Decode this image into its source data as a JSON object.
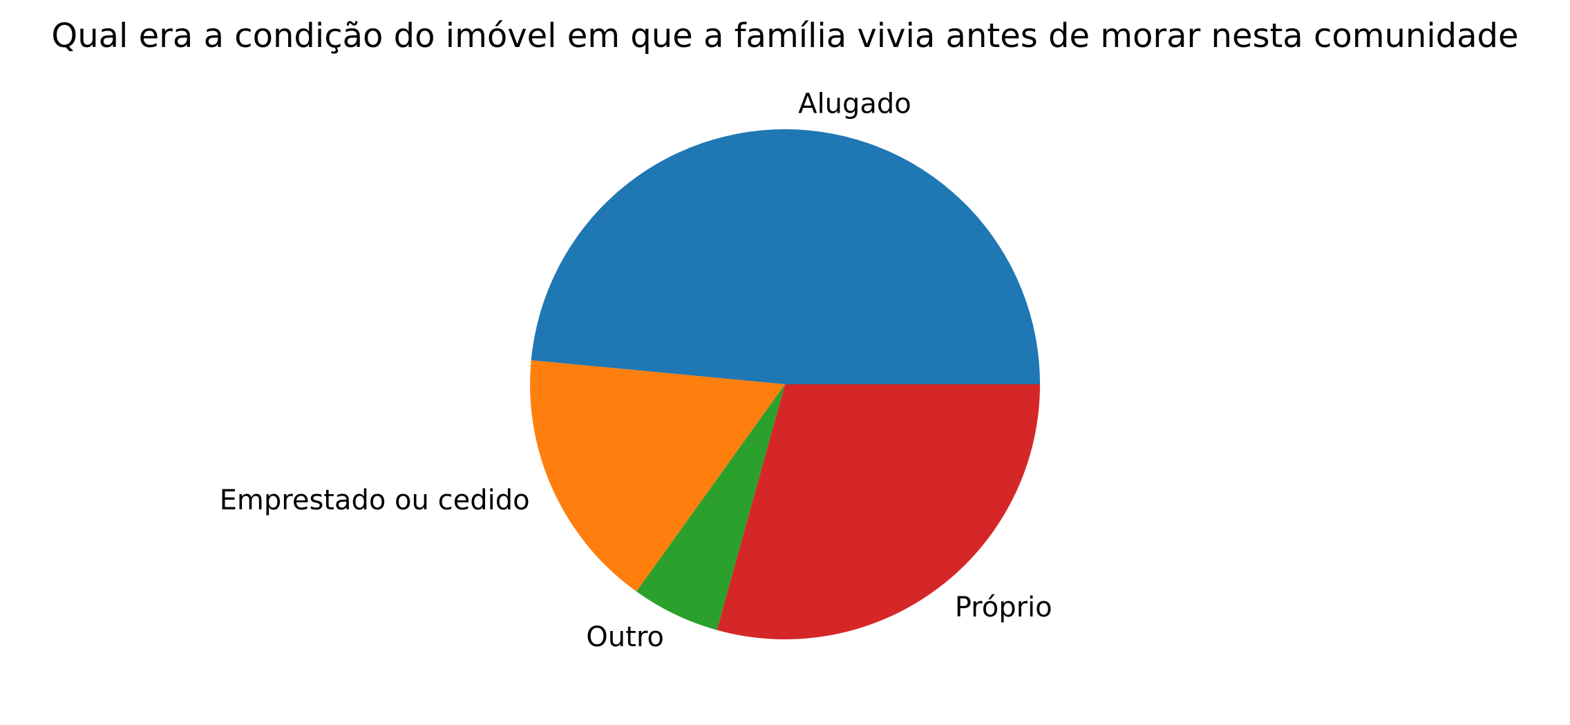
{
  "chart_data": {
    "type": "pie",
    "title": "Qual era a condição do imóvel em que a família vivia antes de morar nesta comunidade",
    "start_angle_deg": 0,
    "direction": "counterclockwise",
    "slices": [
      {
        "label": "Alugado",
        "value": 48.5,
        "color": "#1f77b4"
      },
      {
        "label": "Emprestado ou cedido",
        "value": 16.6,
        "color": "#ff7f0e"
      },
      {
        "label": "Outro",
        "value": 5.6,
        "color": "#2ca02c"
      },
      {
        "label": "Próprio",
        "value": 29.3,
        "color": "#d62728"
      }
    ]
  }
}
